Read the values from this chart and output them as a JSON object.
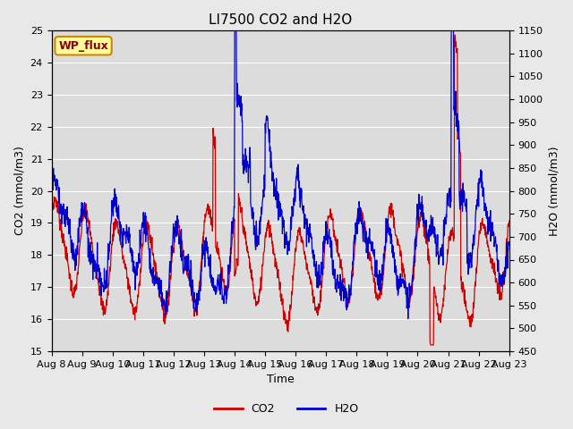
{
  "title": "LI7500 CO2 and H2O",
  "xlabel": "Time",
  "ylabel_left": "CO2 (mmol/m3)",
  "ylabel_right": "H2O (mmol/m3)",
  "ylim_left": [
    15.0,
    25.0
  ],
  "ylim_right": [
    450,
    1150
  ],
  "yticks_left": [
    15.0,
    16.0,
    17.0,
    18.0,
    19.0,
    20.0,
    21.0,
    22.0,
    23.0,
    24.0,
    25.0
  ],
  "yticks_right": [
    450,
    500,
    550,
    600,
    650,
    700,
    750,
    800,
    850,
    900,
    950,
    1000,
    1050,
    1100,
    1150
  ],
  "xtick_labels": [
    "Aug 8",
    "Aug 9",
    "Aug 10",
    "Aug 11",
    "Aug 12",
    "Aug 13",
    "Aug 14",
    "Aug 15",
    "Aug 16",
    "Aug 17",
    "Aug 18",
    "Aug 19",
    "Aug 20",
    "Aug 21",
    "Aug 22",
    "Aug 23"
  ],
  "co2_color": "#cc0000",
  "h2o_color": "#0000cc",
  "fig_facecolor": "#e8e8e8",
  "plot_facecolor": "#dcdcdc",
  "grid_color": "#ffffff",
  "annotation_text": "WP_flux",
  "annotation_bg": "#ffff99",
  "annotation_border": "#cc8800",
  "annotation_text_color": "#880000",
  "title_fontsize": 11,
  "axis_label_fontsize": 9,
  "tick_fontsize": 8,
  "legend_fontsize": 9,
  "linewidth": 0.9
}
